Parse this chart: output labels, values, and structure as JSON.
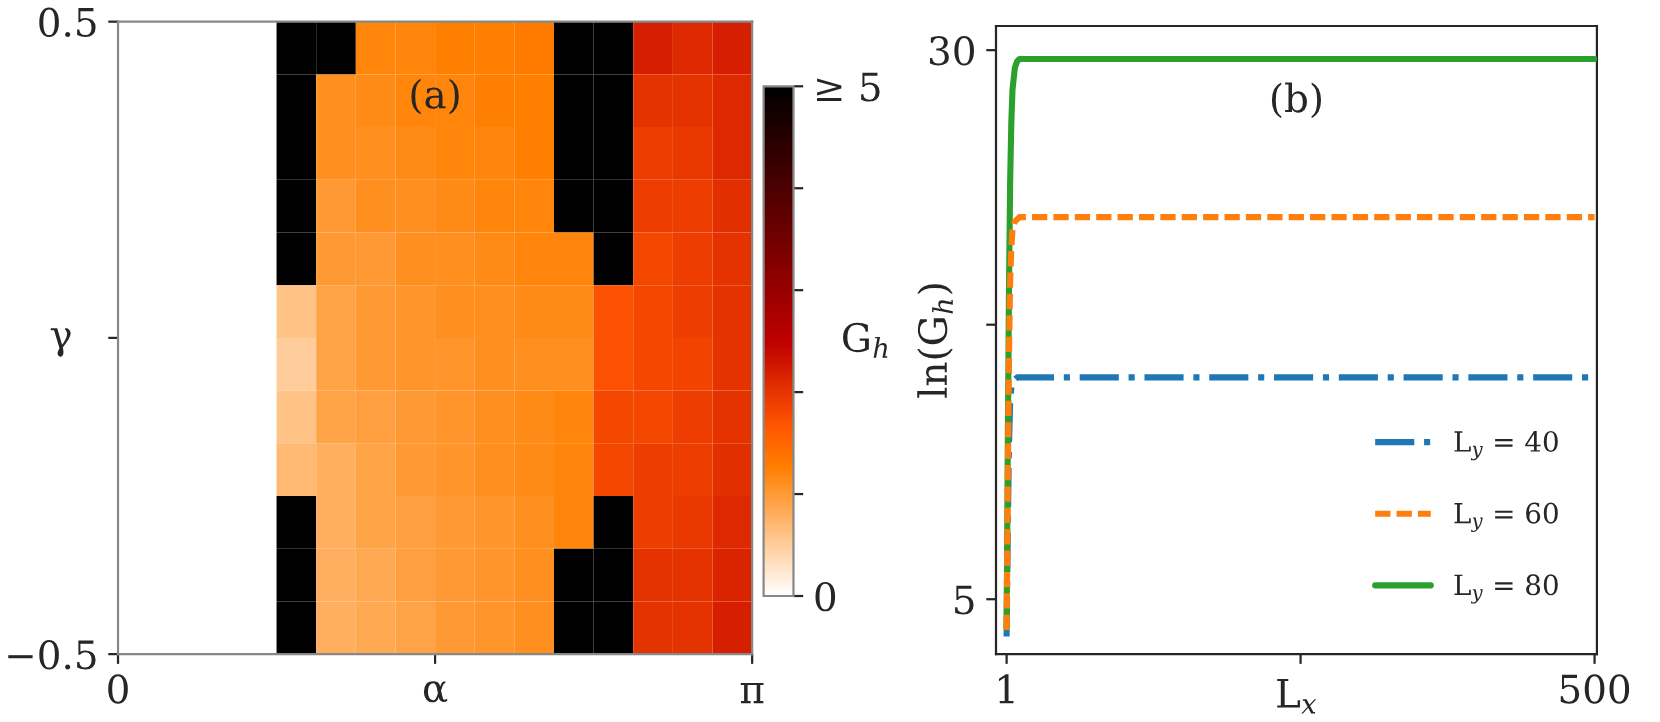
{
  "chart_data": [
    {
      "type": "heatmap",
      "annotations": [
        "(a)"
      ],
      "xlabel": "α",
      "ylabel": "γ",
      "clabel": "G$_{h}$",
      "x": [
        0.0982,
        0.2945,
        0.4909,
        0.6872,
        0.8836,
        1.0799,
        1.2763,
        1.4726,
        1.669,
        1.8653,
        2.0617,
        2.258,
        2.4544,
        2.6507,
        2.8471,
        3.0434
      ],
      "y": [
        0.4583,
        0.375,
        0.2917,
        0.2083,
        0.125,
        0.0417,
        -0.0417,
        -0.125,
        -0.2083,
        -0.2917,
        -0.375,
        -0.4583
      ],
      "xlim": [
        0,
        3.1416
      ],
      "ylim": [
        -0.5,
        0.5
      ],
      "xticks": [
        0,
        {
          "value": 1.5708,
          "label": null
        },
        {
          "value": 3.1416,
          "label": "π"
        }
      ],
      "yticks": [
        {
          "value": -0.5,
          "label": "−0.5"
        },
        {
          "value": 0,
          "label": null
        },
        0.5
      ],
      "clim": [
        0,
        5
      ],
      "cticks": [
        0,
        {
          "value": 1,
          "label": null
        },
        {
          "value": 2,
          "label": null
        },
        {
          "value": 3,
          "label": null
        },
        {
          "value": 4,
          "label": null
        },
        {
          "value": 5,
          "label": "≥ 5"
        }
      ],
      "cells": [
        [
          0,
          0,
          0,
          0,
          5,
          5,
          1.2,
          1.2,
          1.25,
          1.25,
          1.3,
          5,
          5,
          2.2,
          2.1,
          2.2
        ],
        [
          0,
          0,
          0,
          0,
          5,
          1.1,
          1.15,
          1.2,
          1.2,
          1.25,
          1.25,
          5,
          5,
          2.0,
          2.0,
          2.1
        ],
        [
          0,
          0,
          0,
          0,
          5,
          1.1,
          1.1,
          1.15,
          1.2,
          1.2,
          1.25,
          5,
          5,
          1.9,
          1.95,
          2.1
        ],
        [
          0,
          0,
          0,
          0,
          5,
          1.0,
          1.1,
          1.1,
          1.15,
          1.2,
          1.2,
          5,
          5,
          1.9,
          1.9,
          2.05
        ],
        [
          0,
          0,
          0,
          0,
          5,
          1.0,
          1.0,
          1.1,
          1.1,
          1.15,
          1.2,
          1.2,
          5,
          1.8,
          1.9,
          2.0
        ],
        [
          0,
          0,
          0,
          0,
          0.6,
          0.9,
          1.0,
          1.05,
          1.1,
          1.1,
          1.15,
          1.15,
          1.7,
          1.8,
          1.9,
          2.0
        ],
        [
          0,
          0,
          0,
          0,
          0.5,
          0.9,
          1.0,
          1.05,
          1.05,
          1.1,
          1.1,
          1.1,
          1.7,
          1.8,
          1.85,
          2.0
        ],
        [
          0,
          0,
          0,
          0,
          0.6,
          0.9,
          0.95,
          1.0,
          1.05,
          1.1,
          1.15,
          1.2,
          1.8,
          1.8,
          1.9,
          2.0
        ],
        [
          0,
          0,
          0,
          0,
          0.7,
          0.8,
          0.9,
          1.0,
          1.05,
          1.1,
          1.15,
          1.2,
          1.8,
          1.9,
          1.9,
          2.05
        ],
        [
          0,
          0,
          0,
          0,
          5,
          0.8,
          0.9,
          0.95,
          1.0,
          1.05,
          1.1,
          1.2,
          5,
          1.9,
          1.95,
          2.1
        ],
        [
          0,
          0,
          0,
          0,
          5,
          0.8,
          0.85,
          0.95,
          1.0,
          1.05,
          1.1,
          5,
          5,
          2.0,
          2.0,
          2.15
        ],
        [
          0,
          0,
          0,
          0,
          5,
          0.8,
          0.85,
          0.9,
          1.0,
          1.05,
          1.1,
          5,
          5,
          2.0,
          2.0,
          2.2
        ]
      ]
    },
    {
      "type": "line",
      "annotations": [
        "(b)"
      ],
      "xlabel": "L$_{x}$",
      "ylabel": "ln(G$_{h}$)",
      "x": [
        1,
        2,
        3,
        4,
        5,
        6,
        8,
        10,
        12,
        15,
        20,
        50,
        100,
        200,
        300,
        400,
        500
      ],
      "xlim": [
        -8,
        502
      ],
      "ylim": [
        2.5,
        31.1
      ],
      "xticks": [
        1,
        {
          "value": 250.5,
          "label": null
        },
        500
      ],
      "yticks": [
        5,
        {
          "value": 17.5,
          "label": null
        },
        30
      ],
      "legend": "bottom right",
      "series": [
        {
          "name": "L$_{y}$ = 40",
          "color": "#1f77b4",
          "line_style": "dashdot",
          "values": [
            3.3,
            8,
            12,
            14,
            14.6,
            14.9,
            15.0,
            15.1,
            15.1,
            15.1,
            15.1,
            15.1,
            15.1,
            15.1,
            15.1,
            15.1,
            15.1
          ]
        },
        {
          "name": "L$_{y}$ = 60",
          "color": "#ff7f0e",
          "line_style": "dashed",
          "values": [
            3.6,
            10,
            16,
            19.5,
            21,
            21.8,
            22.2,
            22.3,
            22.4,
            22.4,
            22.4,
            22.4,
            22.4,
            22.4,
            22.4,
            22.4,
            22.4
          ]
        },
        {
          "name": "L$_{y}$ = 80",
          "color": "#2ca02c",
          "line_style": "solid",
          "values": [
            3.7,
            12,
            19,
            24,
            26.7,
            28.2,
            29.2,
            29.5,
            29.6,
            29.6,
            29.6,
            29.6,
            29.6,
            29.6,
            29.6,
            29.6,
            29.6
          ]
        }
      ]
    }
  ]
}
